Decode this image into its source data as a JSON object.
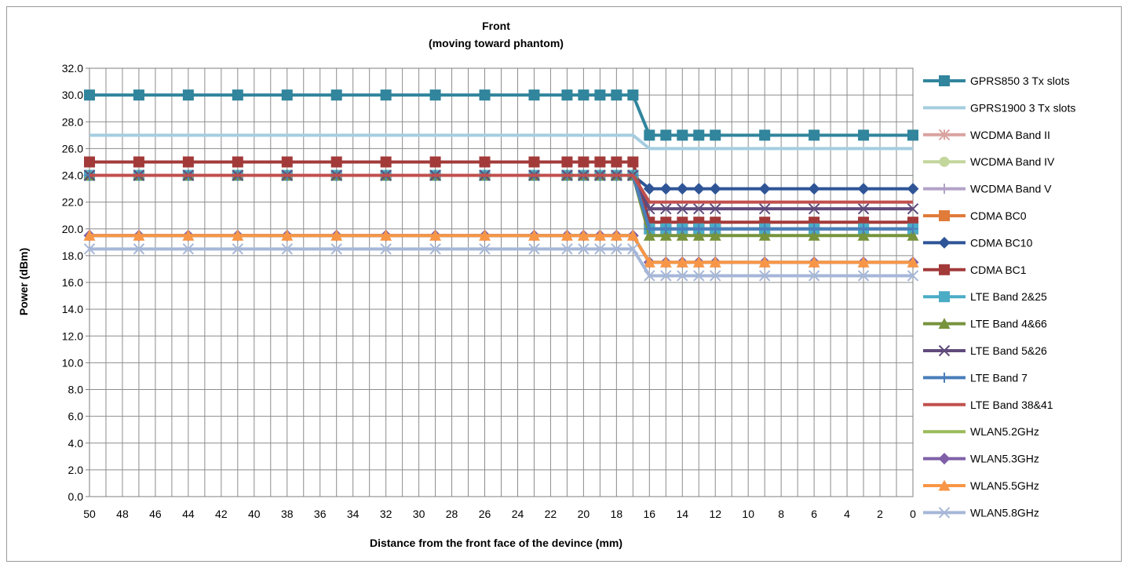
{
  "chart_data": {
    "type": "line",
    "title": "Front",
    "subtitle": "(moving toward phantom)",
    "xlabel": "Distance from the front face of the devince (mm)",
    "ylabel": "Power (dBm)",
    "ylim": [
      0,
      32
    ],
    "yticks": [
      "0.0",
      "2.0",
      "4.0",
      "6.0",
      "8.0",
      "10.0",
      "12.0",
      "14.0",
      "16.0",
      "18.0",
      "20.0",
      "22.0",
      "24.0",
      "26.0",
      "28.0",
      "30.0",
      "32.0"
    ],
    "xticks": [
      "50",
      "48",
      "46",
      "44",
      "42",
      "40",
      "38",
      "36",
      "34",
      "32",
      "30",
      "28",
      "26",
      "24",
      "22",
      "20",
      "18",
      "16",
      "14",
      "12",
      "10",
      "8",
      "6",
      "4",
      "2",
      "0"
    ],
    "grid": true,
    "legend_position": "right",
    "x": [
      50,
      47,
      44,
      41,
      38,
      35,
      32,
      29,
      26,
      23,
      21,
      20,
      19,
      18,
      17,
      16,
      15,
      14,
      13,
      12,
      9,
      6,
      3,
      0
    ],
    "series": [
      {
        "name": "GPRS850 3 Tx slots",
        "color": "#31859c",
        "marker": "square",
        "values": [
          30,
          30,
          30,
          30,
          30,
          30,
          30,
          30,
          30,
          30,
          30,
          30,
          30,
          30,
          30,
          27,
          27,
          27,
          27,
          27,
          27,
          27,
          27,
          27
        ]
      },
      {
        "name": "GPRS1900 3 Tx slots",
        "color": "#a5cde0",
        "marker": "none",
        "values": [
          27,
          27,
          27,
          27,
          27,
          27,
          27,
          27,
          27,
          27,
          27,
          27,
          27,
          27,
          27,
          26,
          26,
          26,
          26,
          26,
          26,
          26,
          26,
          26
        ]
      },
      {
        "name": "WCDMA Band II",
        "color": "#d9a3a0",
        "marker": "star",
        "values": [
          24,
          24,
          24,
          24,
          24,
          24,
          24,
          24,
          24,
          24,
          24,
          24,
          24,
          24,
          24,
          20,
          20,
          20,
          20,
          20,
          20,
          20,
          20,
          20
        ]
      },
      {
        "name": "WCDMA Band IV",
        "color": "#c3d69b",
        "marker": "circle",
        "values": [
          24,
          24,
          24,
          24,
          24,
          24,
          24,
          24,
          24,
          24,
          24,
          24,
          24,
          24,
          24,
          20,
          20,
          20,
          20,
          20,
          20,
          20,
          20,
          20
        ]
      },
      {
        "name": "WCDMA Band V",
        "color": "#b3a2c7",
        "marker": "plus",
        "values": [
          24,
          24,
          24,
          24,
          24,
          24,
          24,
          24,
          24,
          24,
          24,
          24,
          24,
          24,
          24,
          20,
          20,
          20,
          20,
          20,
          20,
          20,
          20,
          20
        ]
      },
      {
        "name": "CDMA BC0",
        "color": "#e07b39",
        "marker": "square",
        "values": [
          24,
          24,
          24,
          24,
          24,
          24,
          24,
          24,
          24,
          24,
          24,
          24,
          24,
          24,
          24,
          20,
          20,
          20,
          20,
          20,
          20,
          20,
          20,
          20
        ]
      },
      {
        "name": "CDMA BC10",
        "color": "#2f5597",
        "marker": "diamond",
        "values": [
          24,
          24,
          24,
          24,
          24,
          24,
          24,
          24,
          24,
          24,
          24,
          24,
          24,
          24,
          24,
          23,
          23,
          23,
          23,
          23,
          23,
          23,
          23,
          23
        ]
      },
      {
        "name": "CDMA BC1",
        "color": "#a33a3a",
        "marker": "square",
        "values": [
          25,
          25,
          25,
          25,
          25,
          25,
          25,
          25,
          25,
          25,
          25,
          25,
          25,
          25,
          25,
          20.5,
          20.5,
          20.5,
          20.5,
          20.5,
          20.5,
          20.5,
          20.5,
          20.5
        ]
      },
      {
        "name": "LTE Band 2&25",
        "color": "#4bacc6",
        "marker": "square",
        "values": [
          24,
          24,
          24,
          24,
          24,
          24,
          24,
          24,
          24,
          24,
          24,
          24,
          24,
          24,
          24,
          20,
          20,
          20,
          20,
          20,
          20,
          20,
          20,
          20
        ]
      },
      {
        "name": "LTE Band 4&66",
        "color": "#77933c",
        "marker": "triangle",
        "values": [
          24,
          24,
          24,
          24,
          24,
          24,
          24,
          24,
          24,
          24,
          24,
          24,
          24,
          24,
          24,
          19.5,
          19.5,
          19.5,
          19.5,
          19.5,
          19.5,
          19.5,
          19.5,
          19.5
        ]
      },
      {
        "name": "LTE Band 5&26",
        "color": "#604a7b",
        "marker": "x",
        "values": [
          24,
          24,
          24,
          24,
          24,
          24,
          24,
          24,
          24,
          24,
          24,
          24,
          24,
          24,
          24,
          21.5,
          21.5,
          21.5,
          21.5,
          21.5,
          21.5,
          21.5,
          21.5,
          21.5
        ]
      },
      {
        "name": "LTE Band 7",
        "color": "#4a7ebb",
        "marker": "plus",
        "values": [
          24,
          24,
          24,
          24,
          24,
          24,
          24,
          24,
          24,
          24,
          24,
          24,
          24,
          24,
          24,
          20,
          20,
          20,
          20,
          20,
          20,
          20,
          20,
          20
        ]
      },
      {
        "name": "LTE Band 38&41",
        "color": "#c0504d",
        "marker": "none",
        "values": [
          24,
          24,
          24,
          24,
          24,
          24,
          24,
          24,
          24,
          24,
          24,
          24,
          24,
          24,
          24,
          22,
          22,
          22,
          22,
          22,
          22,
          22,
          22,
          22
        ]
      },
      {
        "name": "WLAN5.2GHz",
        "color": "#9bbb59",
        "marker": "none",
        "values": [
          19.5,
          19.5,
          19.5,
          19.5,
          19.5,
          19.5,
          19.5,
          19.5,
          19.5,
          19.5,
          19.5,
          19.5,
          19.5,
          19.5,
          19.5,
          17.5,
          17.5,
          17.5,
          17.5,
          17.5,
          17.5,
          17.5,
          17.5,
          17.5
        ]
      },
      {
        "name": "WLAN5.3GHz",
        "color": "#7f60a8",
        "marker": "diamond",
        "values": [
          19.5,
          19.5,
          19.5,
          19.5,
          19.5,
          19.5,
          19.5,
          19.5,
          19.5,
          19.5,
          19.5,
          19.5,
          19.5,
          19.5,
          19.5,
          17.5,
          17.5,
          17.5,
          17.5,
          17.5,
          17.5,
          17.5,
          17.5,
          17.5
        ]
      },
      {
        "name": "WLAN5.5GHz",
        "color": "#f79646",
        "marker": "triangle",
        "values": [
          19.5,
          19.5,
          19.5,
          19.5,
          19.5,
          19.5,
          19.5,
          19.5,
          19.5,
          19.5,
          19.5,
          19.5,
          19.5,
          19.5,
          19.5,
          17.5,
          17.5,
          17.5,
          17.5,
          17.5,
          17.5,
          17.5,
          17.5,
          17.5
        ]
      },
      {
        "name": "WLAN5.8GHz",
        "color": "#a6b7d8",
        "marker": "x",
        "values": [
          18.5,
          18.5,
          18.5,
          18.5,
          18.5,
          18.5,
          18.5,
          18.5,
          18.5,
          18.5,
          18.5,
          18.5,
          18.5,
          18.5,
          18.5,
          16.5,
          16.5,
          16.5,
          16.5,
          16.5,
          16.5,
          16.5,
          16.5,
          16.5
        ]
      }
    ]
  }
}
